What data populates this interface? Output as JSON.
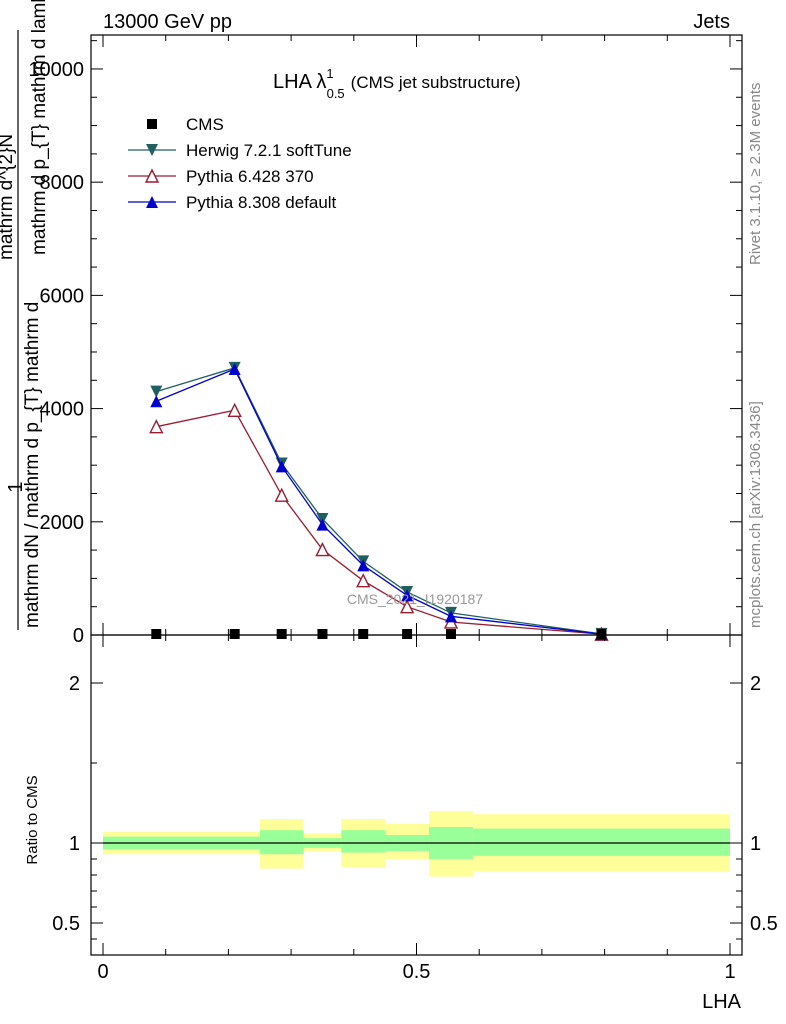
{
  "header": {
    "left": "13000 GeV pp",
    "right": "Jets"
  },
  "side_labels": {
    "rivet": "Rivet 3.1.10, ≥ 2.3M events",
    "mcplots": "mcplots.cern.ch [arXiv:1306.3436]"
  },
  "watermark": "CMS_2021_I1920187",
  "chart_data": [
    {
      "type": "line",
      "title_main": "LHA λ",
      "title_sup": "1",
      "title_sub": "0.5",
      "title_rest": "(CMS jet substructure)",
      "ylabel_top": "1",
      "ylabel_frac_num": "mathrm d^{2}N",
      "ylabel_frac_den": "mathrm d p_{T} mathrm d lambda",
      "ylabel_prefix": "mathrm dN / mathrm d p_{T} mathrm d",
      "xlim": [
        0,
        1
      ],
      "ylim": [
        0,
        10600
      ],
      "y_ticks": [
        0,
        2000,
        4000,
        6000,
        8000,
        10000
      ],
      "y_tick_labels": [
        "0",
        "2000",
        "4000",
        "6000",
        "8000",
        "10000"
      ],
      "legend_placement": "top-left",
      "series": [
        {
          "name": "CMS",
          "color": "#000000",
          "marker": "square",
          "x": [
            0.085,
            0.21,
            0.285,
            0.35,
            0.415,
            0.485,
            0.555,
            0.795
          ],
          "y": [
            0,
            0,
            0,
            0,
            0,
            0,
            0,
            0
          ]
        },
        {
          "name": "Herwig 7.2.1 softTune",
          "color": "#1f5f5f",
          "marker": "triangle-down",
          "x": [
            0.085,
            0.21,
            0.285,
            0.35,
            0.415,
            0.485,
            0.555,
            0.795
          ],
          "y": [
            4300,
            4720,
            3030,
            2050,
            1300,
            760,
            390,
            20
          ]
        },
        {
          "name": "Pythia 6.428 370",
          "color": "#9b1b30",
          "marker": "triangle-up-open",
          "x": [
            0.085,
            0.21,
            0.285,
            0.35,
            0.415,
            0.485,
            0.555,
            0.795
          ],
          "y": [
            3680,
            3970,
            2470,
            1510,
            960,
            500,
            230,
            15
          ]
        },
        {
          "name": "Pythia 8.308 default",
          "color": "#0000cc",
          "marker": "triangle-up",
          "x": [
            0.085,
            0.21,
            0.285,
            0.35,
            0.415,
            0.485,
            0.555,
            0.795
          ],
          "y": [
            4130,
            4700,
            2980,
            1950,
            1230,
            700,
            330,
            15
          ]
        }
      ]
    },
    {
      "type": "area",
      "ylabel": "Ratio to CMS",
      "xlabel": "LHA",
      "xlim": [
        0,
        1
      ],
      "ylim": [
        0.3,
        2.3
      ],
      "x_ticks": [
        0,
        0.5,
        1
      ],
      "x_tick_labels": [
        "0",
        "0.5",
        "1"
      ],
      "y_ticks": [
        0.5,
        1,
        2
      ],
      "y_tick_labels": [
        "0.5",
        "1",
        "2"
      ],
      "reference_line": 1,
      "bands": [
        {
          "x0": 0.0,
          "x1": 0.25,
          "inner": [
            0.96,
            1.04
          ],
          "outer": [
            0.93,
            1.07
          ]
        },
        {
          "x0": 0.25,
          "x1": 0.32,
          "inner": [
            0.93,
            1.08
          ],
          "outer": [
            0.84,
            1.15
          ]
        },
        {
          "x0": 0.32,
          "x1": 0.38,
          "inner": [
            0.97,
            1.03
          ],
          "outer": [
            0.95,
            1.06
          ]
        },
        {
          "x0": 0.38,
          "x1": 0.45,
          "inner": [
            0.94,
            1.08
          ],
          "outer": [
            0.85,
            1.15
          ]
        },
        {
          "x0": 0.45,
          "x1": 0.52,
          "inner": [
            0.95,
            1.05
          ],
          "outer": [
            0.9,
            1.12
          ]
        },
        {
          "x0": 0.52,
          "x1": 0.59,
          "inner": [
            0.9,
            1.1
          ],
          "outer": [
            0.79,
            1.2
          ]
        },
        {
          "x0": 0.59,
          "x1": 1.0,
          "inner": [
            0.92,
            1.09
          ],
          "outer": [
            0.82,
            1.18
          ]
        }
      ],
      "band_colors": {
        "inner": "#99ff99",
        "outer": "#ffff99"
      }
    }
  ]
}
